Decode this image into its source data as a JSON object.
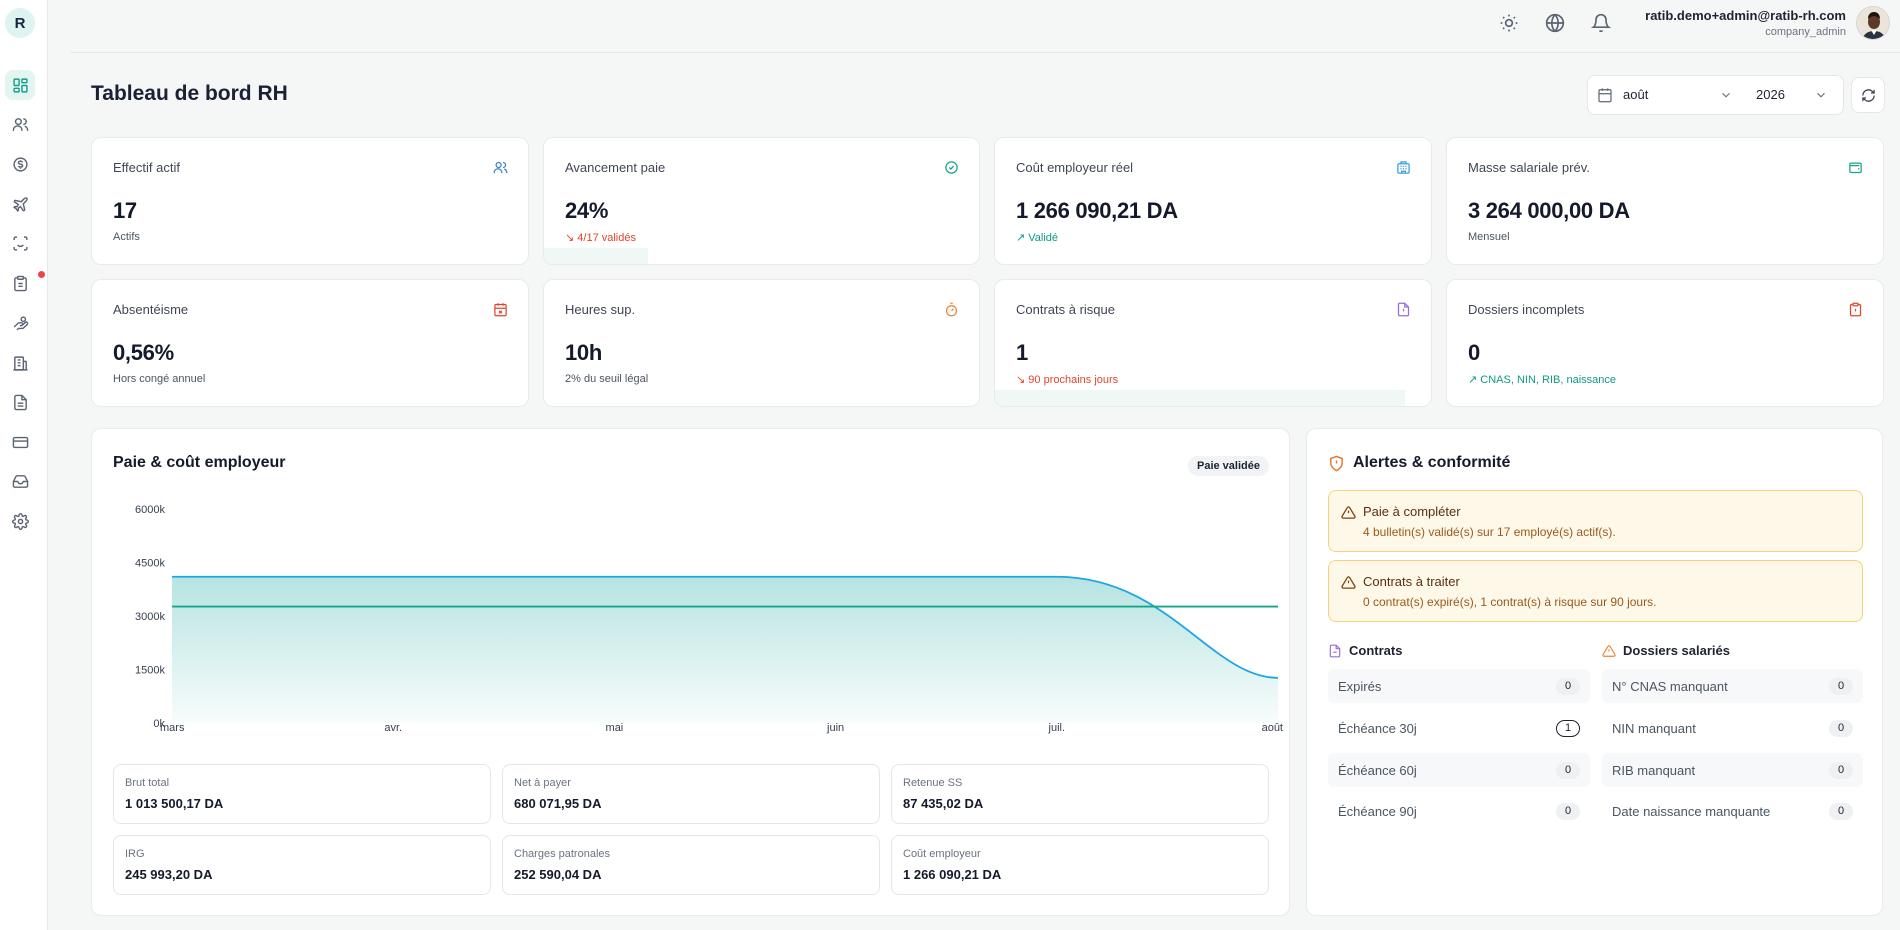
{
  "sidebar": {
    "logo": "R",
    "items": [
      {
        "icon": "dashboard-icon"
      },
      {
        "icon": "users-icon"
      },
      {
        "icon": "payroll-icon"
      },
      {
        "icon": "plane-icon"
      },
      {
        "icon": "scan-face-icon"
      },
      {
        "icon": "clipboard-icon"
      },
      {
        "icon": "hand-coins-icon"
      },
      {
        "icon": "building-icon"
      },
      {
        "icon": "document-icon"
      },
      {
        "icon": "credit-card-icon"
      },
      {
        "icon": "inbox-icon"
      },
      {
        "icon": "settings-icon"
      }
    ]
  },
  "topbar": {
    "user_email": "ratib.demo+admin@ratib-rh.com",
    "user_role": "company_admin"
  },
  "page": {
    "title": "Tableau de bord RH",
    "month": "août",
    "year": "2026"
  },
  "kpis": [
    {
      "label": "Effectif actif",
      "value": "17",
      "sub": "Actifs",
      "icon": "users-icon",
      "color": "#3b82c4"
    },
    {
      "label": "Avancement paie",
      "value": "24%",
      "sub": "4/17 validés",
      "icon": "check-circle-icon",
      "color": "#14a38b",
      "progress": 0.24
    },
    {
      "label": "Coût employeur réel",
      "value": "1 266 090,21 DA",
      "sub": "Validé",
      "icon": "building-icon",
      "color": "#3b9fd8"
    },
    {
      "label": "Masse salariale prév.",
      "value": "3 264 000,00 DA",
      "sub": "Mensuel",
      "icon": "wallet-icon",
      "color": "#14a38b"
    },
    {
      "label": "Absentéisme",
      "value": "0,56%",
      "sub": "Hors congé annuel",
      "icon": "calendar-x-icon",
      "color": "#e2452c"
    },
    {
      "label": "Heures sup.",
      "value": "10h",
      "sub": "2% du seuil légal",
      "icon": "timer-icon",
      "color": "#e8873a"
    },
    {
      "label": "Contrats à risque",
      "value": "1",
      "sub": "90 prochains jours",
      "icon": "file-alert-icon",
      "color": "#9b6bd6",
      "progress": 0.94
    },
    {
      "label": "Dossiers incomplets",
      "value": "0",
      "sub": "CNAS, NIN, RIB, naissance",
      "icon": "clipboard-alert-icon",
      "color": "#e2452c"
    }
  ],
  "chart_data": {
    "type": "area",
    "title": "Paie & coût employeur",
    "badge": "Paie validée",
    "x": [
      "mars",
      "avr.",
      "mai",
      "juin",
      "juil.",
      "août"
    ],
    "yticks": [
      "6000k",
      "4500k",
      "3000k",
      "1500k",
      "0k"
    ],
    "ylim": [
      0,
      6000
    ],
    "series": [
      {
        "values": [
          4100,
          4100,
          4100,
          4100,
          4100,
          1266
        ],
        "color": "#1ea7e4",
        "fill": true
      },
      {
        "values": [
          3264,
          3264,
          3264,
          3264,
          3264,
          3264
        ],
        "color": "#13a68a",
        "fill": false
      }
    ]
  },
  "stats": [
    {
      "label": "Brut total",
      "value": "1 013 500,17 DA"
    },
    {
      "label": "Net à payer",
      "value": "680 071,95 DA"
    },
    {
      "label": "Retenue SS",
      "value": "87 435,02 DA"
    },
    {
      "label": "IRG",
      "value": "245 993,20 DA"
    },
    {
      "label": "Charges patronales",
      "value": "252 590,04 DA"
    },
    {
      "label": "Coût employeur",
      "value": "1 266 090,21 DA"
    }
  ],
  "alerts": {
    "title": "Alertes & conformité",
    "items": [
      {
        "title": "Paie à compléter",
        "text": "4 bulletin(s) validé(s) sur 17 employé(s) actif(s)."
      },
      {
        "title": "Contrats à traiter",
        "text": "0 contrat(s) expiré(s), 1 contrat(s) à risque sur 90 jours."
      }
    ],
    "contrats": {
      "title": "Contrats",
      "rows": [
        {
          "label": "Expirés",
          "count": "0"
        },
        {
          "label": "Échéance 30j",
          "count": "1"
        },
        {
          "label": "Échéance 60j",
          "count": "0"
        },
        {
          "label": "Échéance 90j",
          "count": "0"
        }
      ]
    },
    "dossiers": {
      "title": "Dossiers salariés",
      "rows": [
        {
          "label": "N° CNAS manquant",
          "count": "0"
        },
        {
          "label": "NIN manquant",
          "count": "0"
        },
        {
          "label": "RIB manquant",
          "count": "0"
        },
        {
          "label": "Date naissance manquante",
          "count": "0"
        }
      ]
    }
  }
}
